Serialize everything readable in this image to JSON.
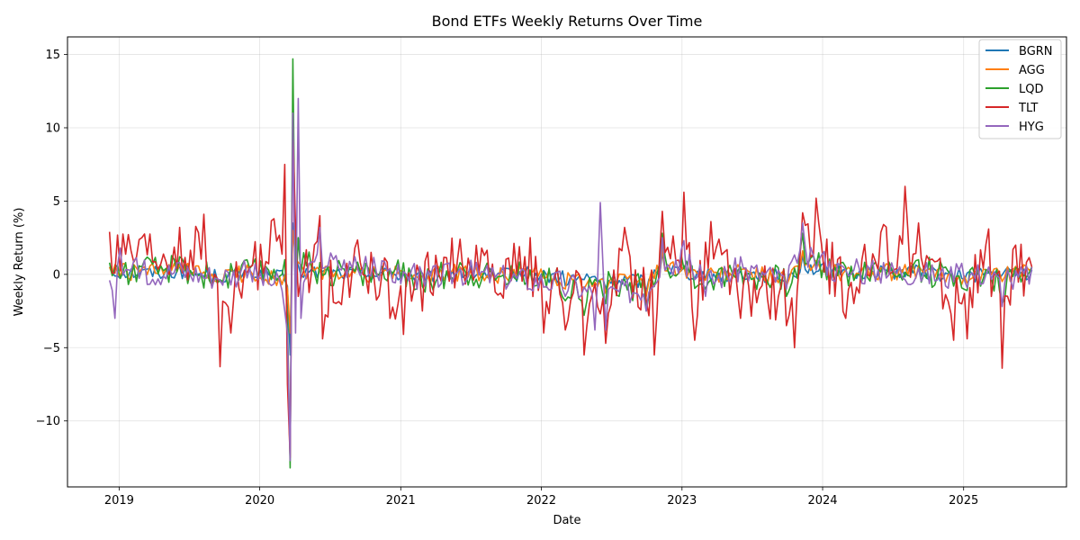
{
  "chart_data": {
    "type": "line",
    "title": "Bond ETFs Weekly Returns Over Time",
    "xlabel": "Date",
    "ylabel": "Weekly Return (%)",
    "xlim": [
      "2018-08-20",
      "2025-09-25"
    ],
    "ylim": [
      -14.5,
      16.2
    ],
    "x_ticks": [
      "2019",
      "2020",
      "2021",
      "2022",
      "2023",
      "2024",
      "2025"
    ],
    "y_ticks": [
      15,
      10,
      5,
      0,
      -5,
      -10
    ],
    "y_tick_labels": [
      "15",
      "10",
      "5",
      "0",
      "−5",
      "−10"
    ],
    "grid": true,
    "legend": "top-right",
    "x_start": "2018-12-07",
    "x_end": "2025-06-27",
    "frequency": "weekly",
    "series": [
      {
        "name": "BGRN",
        "color": "#1f77b4",
        "keypoints": [
          [
            "2018-12-07",
            0.5
          ],
          [
            "2019-03-01",
            0.3
          ],
          [
            "2019-06-07",
            0.6
          ],
          [
            "2019-09-13",
            -0.4
          ],
          [
            "2019-12-06",
            0.3
          ],
          [
            "2020-03-13",
            -0.8
          ],
          [
            "2020-03-20",
            -5.5
          ],
          [
            "2020-03-27",
            3.5
          ],
          [
            "2020-04-10",
            0.6
          ],
          [
            "2020-06-05",
            0.3
          ],
          [
            "2020-09-04",
            0.2
          ],
          [
            "2020-12-04",
            0.1
          ],
          [
            "2021-03-05",
            -0.5
          ],
          [
            "2021-06-04",
            0.4
          ],
          [
            "2021-09-03",
            -0.2
          ],
          [
            "2021-12-03",
            0.1
          ],
          [
            "2022-03-04",
            -0.8
          ],
          [
            "2022-06-17",
            -1.0
          ],
          [
            "2022-09-30",
            -1.2
          ],
          [
            "2022-11-11",
            1.5
          ],
          [
            "2023-03-03",
            -0.3
          ],
          [
            "2023-06-02",
            0.2
          ],
          [
            "2023-09-29",
            -0.6
          ],
          [
            "2023-11-10",
            1.3
          ],
          [
            "2024-03-01",
            0.3
          ],
          [
            "2024-06-07",
            0.4
          ],
          [
            "2024-09-06",
            0.5
          ],
          [
            "2024-12-06",
            -0.3
          ],
          [
            "2025-03-07",
            0.1
          ],
          [
            "2025-06-27",
            0.3
          ]
        ],
        "amplitude": 0.5
      },
      {
        "name": "AGG",
        "color": "#ff7f0e",
        "keypoints": [
          [
            "2018-12-07",
            0.5
          ],
          [
            "2019-03-01",
            0.4
          ],
          [
            "2019-06-07",
            0.7
          ],
          [
            "2019-09-13",
            -0.5
          ],
          [
            "2019-12-06",
            0.3
          ],
          [
            "2020-03-13",
            -1.0
          ],
          [
            "2020-03-20",
            -4.0
          ],
          [
            "2020-03-27",
            3.0
          ],
          [
            "2020-04-10",
            0.8
          ],
          [
            "2020-06-05",
            0.3
          ],
          [
            "2020-09-04",
            0.1
          ],
          [
            "2020-12-04",
            0.2
          ],
          [
            "2021-03-05",
            -0.6
          ],
          [
            "2021-06-04",
            0.5
          ],
          [
            "2021-09-03",
            -0.3
          ],
          [
            "2021-12-03",
            0.2
          ],
          [
            "2022-03-04",
            -1.0
          ],
          [
            "2022-06-17",
            -1.3
          ],
          [
            "2022-09-30",
            -1.5
          ],
          [
            "2022-11-11",
            1.8
          ],
          [
            "2023-03-03",
            -0.4
          ],
          [
            "2023-06-02",
            0.3
          ],
          [
            "2023-09-29",
            -0.8
          ],
          [
            "2023-11-10",
            1.6
          ],
          [
            "2024-03-01",
            0.3
          ],
          [
            "2024-06-07",
            0.4
          ],
          [
            "2024-09-06",
            0.6
          ],
          [
            "2024-12-06",
            -0.4
          ],
          [
            "2025-03-07",
            0.2
          ],
          [
            "2025-06-27",
            0.4
          ]
        ],
        "amplitude": 0.6
      },
      {
        "name": "LQD",
        "color": "#2ca02c",
        "keypoints": [
          [
            "2018-12-07",
            0.8
          ],
          [
            "2019-03-01",
            0.5
          ],
          [
            "2019-06-07",
            1.2
          ],
          [
            "2019-09-13",
            -0.6
          ],
          [
            "2019-12-06",
            0.4
          ],
          [
            "2020-03-06",
            1.0
          ],
          [
            "2020-03-13",
            -3.0
          ],
          [
            "2020-03-20",
            -13.2
          ],
          [
            "2020-03-27",
            14.7
          ],
          [
            "2020-04-03",
            -1.5
          ],
          [
            "2020-04-10",
            2.5
          ],
          [
            "2020-06-05",
            0.8
          ],
          [
            "2020-09-04",
            0.2
          ],
          [
            "2020-12-04",
            0.3
          ],
          [
            "2021-03-05",
            -1.2
          ],
          [
            "2021-06-04",
            0.8
          ],
          [
            "2021-09-03",
            -0.4
          ],
          [
            "2021-12-03",
            0.3
          ],
          [
            "2022-03-04",
            -1.8
          ],
          [
            "2022-04-22",
            -2.8
          ],
          [
            "2022-06-17",
            -2.0
          ],
          [
            "2022-09-30",
            -2.5
          ],
          [
            "2022-11-11",
            2.8
          ],
          [
            "2023-03-03",
            -1.0
          ],
          [
            "2023-06-02",
            0.5
          ],
          [
            "2023-09-29",
            -1.5
          ],
          [
            "2023-11-10",
            2.8
          ],
          [
            "2024-03-01",
            0.5
          ],
          [
            "2024-06-07",
            0.6
          ],
          [
            "2024-09-06",
            1.0
          ],
          [
            "2024-12-06",
            -0.8
          ],
          [
            "2025-03-07",
            0.2
          ],
          [
            "2025-04-11",
            -2.0
          ],
          [
            "2025-06-27",
            0.5
          ]
        ],
        "amplitude": 1.0
      },
      {
        "name": "TLT",
        "color": "#d62728",
        "keypoints": [
          [
            "2018-12-07",
            2.9
          ],
          [
            "2019-03-01",
            2.5
          ],
          [
            "2019-06-07",
            3.2
          ],
          [
            "2019-08-09",
            4.1
          ],
          [
            "2019-09-20",
            -6.3
          ],
          [
            "2019-10-18",
            -4.0
          ],
          [
            "2019-12-06",
            0.5
          ],
          [
            "2020-03-06",
            7.5
          ],
          [
            "2020-03-13",
            -7.5
          ],
          [
            "2020-03-20",
            -12.5
          ],
          [
            "2020-03-27",
            10.0
          ],
          [
            "2020-04-10",
            -1.5
          ],
          [
            "2020-06-12",
            -4.4
          ],
          [
            "2020-06-05",
            4.0
          ],
          [
            "2020-09-04",
            1.8
          ],
          [
            "2020-12-04",
            -3.0
          ],
          [
            "2021-01-08",
            -4.1
          ],
          [
            "2021-02-26",
            -2.5
          ],
          [
            "2021-04-02",
            1.3
          ],
          [
            "2021-06-04",
            2.4
          ],
          [
            "2021-09-03",
            -1.2
          ],
          [
            "2021-12-03",
            2.5
          ],
          [
            "2022-01-07",
            -4.0
          ],
          [
            "2022-03-04",
            -3.8
          ],
          [
            "2022-04-22",
            -5.5
          ],
          [
            "2022-06-17",
            -4.7
          ],
          [
            "2022-08-05",
            3.2
          ],
          [
            "2022-10-21",
            -5.5
          ],
          [
            "2022-11-11",
            4.3
          ],
          [
            "2023-01-06",
            5.6
          ],
          [
            "2023-02-03",
            -4.5
          ],
          [
            "2023-03-17",
            3.6
          ],
          [
            "2023-06-02",
            -3.0
          ],
          [
            "2023-09-29",
            -3.5
          ],
          [
            "2023-10-20",
            -5.0
          ],
          [
            "2023-11-10",
            4.2
          ],
          [
            "2023-12-15",
            5.2
          ],
          [
            "2024-03-01",
            -3.0
          ],
          [
            "2024-06-07",
            3.4
          ],
          [
            "2024-08-02",
            6.0
          ],
          [
            "2024-09-06",
            3.5
          ],
          [
            "2024-12-06",
            -4.5
          ],
          [
            "2025-01-10",
            -4.4
          ],
          [
            "2025-03-07",
            3.1
          ],
          [
            "2025-04-11",
            -6.4
          ],
          [
            "2025-05-16",
            2.0
          ],
          [
            "2025-06-27",
            0.5
          ]
        ],
        "amplitude": 2.0
      },
      {
        "name": "HYG",
        "color": "#9467bd",
        "keypoints": [
          [
            "2018-12-07",
            -0.4
          ],
          [
            "2018-12-21",
            -3.0
          ],
          [
            "2019-01-04",
            1.8
          ],
          [
            "2019-03-01",
            0.3
          ],
          [
            "2019-06-07",
            0.8
          ],
          [
            "2019-09-13",
            -0.3
          ],
          [
            "2019-12-06",
            0.4
          ],
          [
            "2020-03-06",
            -2.5
          ],
          [
            "2020-03-13",
            -4.0
          ],
          [
            "2020-03-20",
            -12.7
          ],
          [
            "2020-03-27",
            11.0
          ],
          [
            "2020-04-03",
            -4.0
          ],
          [
            "2020-04-10",
            12.0
          ],
          [
            "2020-04-17",
            -3.0
          ],
          [
            "2020-06-05",
            3.2
          ],
          [
            "2020-09-04",
            1.2
          ],
          [
            "2020-12-04",
            0.4
          ],
          [
            "2021-03-05",
            -0.8
          ],
          [
            "2021-06-04",
            0.4
          ],
          [
            "2021-09-03",
            -0.2
          ],
          [
            "2021-12-03",
            -1.0
          ],
          [
            "2022-03-04",
            -1.5
          ],
          [
            "2022-05-20",
            -3.8
          ],
          [
            "2022-06-03",
            4.9
          ],
          [
            "2022-06-17",
            -3.8
          ],
          [
            "2022-09-30",
            -2.5
          ],
          [
            "2022-11-11",
            2.5
          ],
          [
            "2023-01-06",
            2.3
          ],
          [
            "2023-03-03",
            -1.5
          ],
          [
            "2023-06-02",
            1.2
          ],
          [
            "2023-09-29",
            -1.0
          ],
          [
            "2023-11-10",
            3.5
          ],
          [
            "2024-03-01",
            0.3
          ],
          [
            "2024-06-07",
            0.8
          ],
          [
            "2024-09-06",
            0.4
          ],
          [
            "2024-12-06",
            -0.5
          ],
          [
            "2025-03-07",
            0.5
          ],
          [
            "2025-04-11",
            -2.2
          ],
          [
            "2025-06-27",
            0.5
          ]
        ],
        "amplitude": 0.9
      }
    ]
  }
}
